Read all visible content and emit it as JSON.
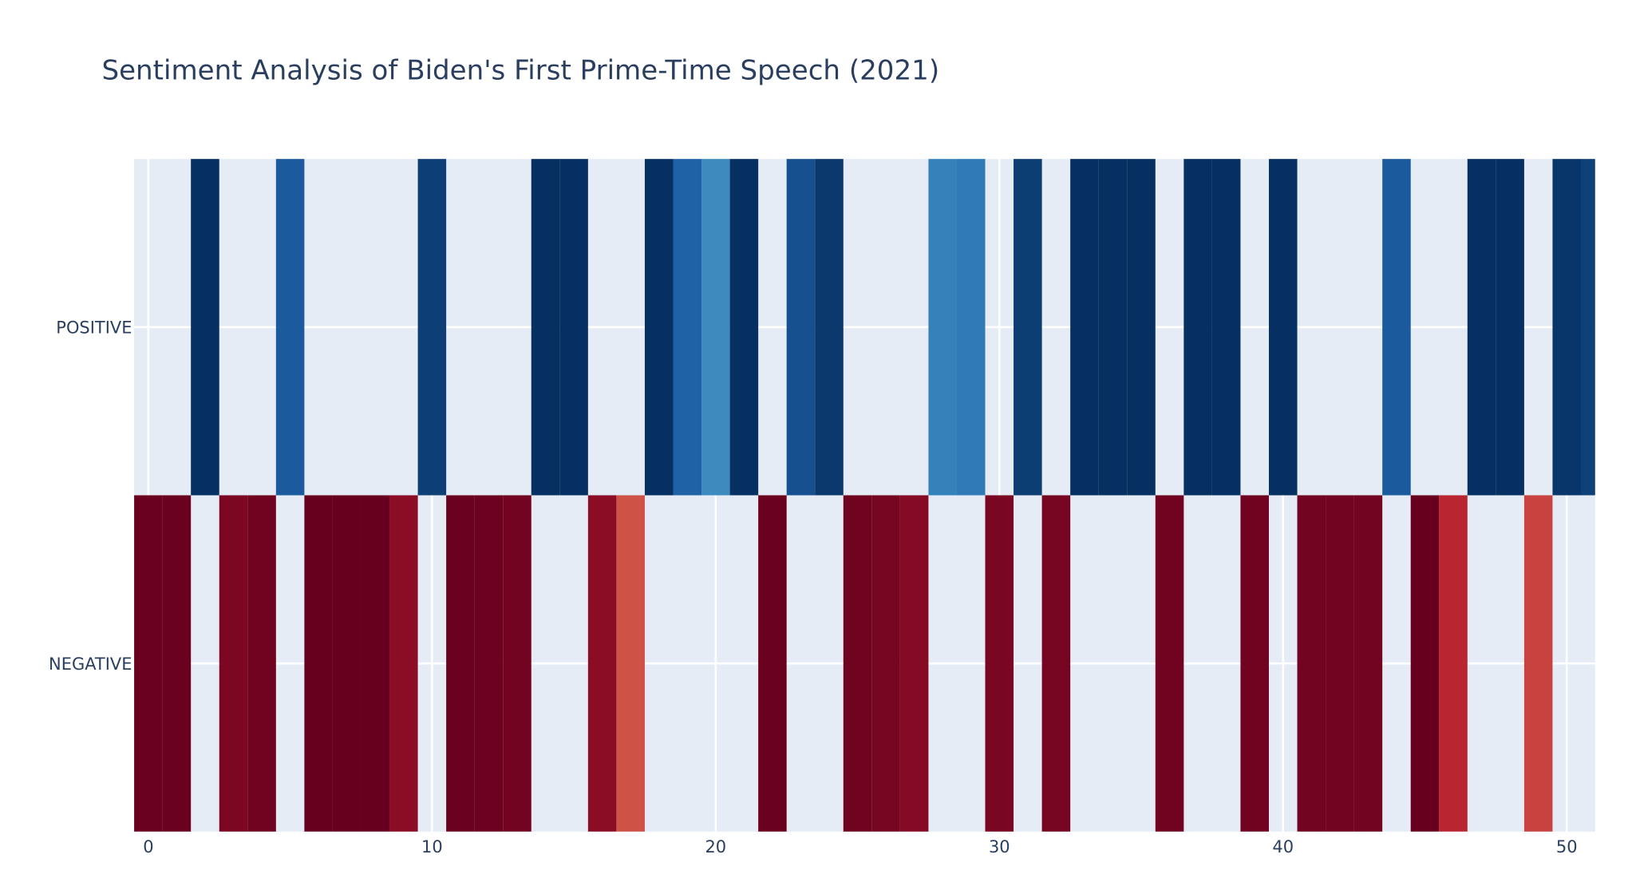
{
  "chart_data": {
    "type": "heatmap",
    "title": "Sentiment Analysis of Biden's First Prime-Time Speech (2021)",
    "xlabel": "",
    "ylabel": "",
    "x_range": [
      -0.5,
      51
    ],
    "x_ticks": [
      0,
      10,
      20,
      30,
      40,
      50
    ],
    "x_tick_labels": [
      "0",
      "10",
      "20",
      "30",
      "40",
      "50"
    ],
    "y_categories": [
      "NEGATIVE",
      "POSITIVE"
    ],
    "colorscale": "RdBu",
    "zrange": [
      -1,
      1
    ],
    "grid": true,
    "series": [
      {
        "name": "POSITIVE",
        "cells": [
          {
            "x": 2,
            "z": 1.0
          },
          {
            "x": 5,
            "z": 0.8
          },
          {
            "x": 10,
            "z": 0.93
          },
          {
            "x": 14,
            "z": 1.0
          },
          {
            "x": 15,
            "z": 1.0
          },
          {
            "x": 18,
            "z": 1.0
          },
          {
            "x": 19,
            "z": 0.77
          },
          {
            "x": 20,
            "z": 0.55
          },
          {
            "x": 21,
            "z": 1.0
          },
          {
            "x": 23,
            "z": 0.85
          },
          {
            "x": 24,
            "z": 0.96
          },
          {
            "x": 28,
            "z": 0.6
          },
          {
            "x": 29,
            "z": 0.64
          },
          {
            "x": 31,
            "z": 0.94
          },
          {
            "x": 33,
            "z": 1.0
          },
          {
            "x": 34,
            "z": 1.0
          },
          {
            "x": 35,
            "z": 1.0
          },
          {
            "x": 37,
            "z": 1.0
          },
          {
            "x": 38,
            "z": 1.0
          },
          {
            "x": 40,
            "z": 1.0
          },
          {
            "x": 44,
            "z": 0.8
          },
          {
            "x": 47,
            "z": 1.0
          },
          {
            "x": 48,
            "z": 1.0
          },
          {
            "x": 50,
            "z": 0.97
          },
          {
            "x": 51,
            "z": 0.92
          }
        ]
      },
      {
        "name": "NEGATIVE",
        "cells": [
          {
            "x": 0,
            "z": -0.99
          },
          {
            "x": 1,
            "z": -0.99
          },
          {
            "x": 3,
            "z": -0.93
          },
          {
            "x": 4,
            "z": -0.97
          },
          {
            "x": 6,
            "z": -1.0
          },
          {
            "x": 7,
            "z": -1.0
          },
          {
            "x": 8,
            "z": -1.0
          },
          {
            "x": 9,
            "z": -0.88
          },
          {
            "x": 11,
            "z": -0.99
          },
          {
            "x": 12,
            "z": -0.98
          },
          {
            "x": 13,
            "z": -0.96
          },
          {
            "x": 16,
            "z": -0.88
          },
          {
            "x": 17,
            "z": -0.55
          },
          {
            "x": 22,
            "z": -0.99
          },
          {
            "x": 25,
            "z": -0.97
          },
          {
            "x": 26,
            "z": -0.95
          },
          {
            "x": 27,
            "z": -0.9
          },
          {
            "x": 30,
            "z": -0.94
          },
          {
            "x": 32,
            "z": -0.95
          },
          {
            "x": 36,
            "z": -0.97
          },
          {
            "x": 39,
            "z": -0.97
          },
          {
            "x": 41,
            "z": -0.96
          },
          {
            "x": 42,
            "z": -0.96
          },
          {
            "x": 43,
            "z": -0.96
          },
          {
            "x": 45,
            "z": -1.0
          },
          {
            "x": 46,
            "z": -0.7
          },
          {
            "x": 49,
            "z": -0.6
          }
        ]
      }
    ]
  }
}
